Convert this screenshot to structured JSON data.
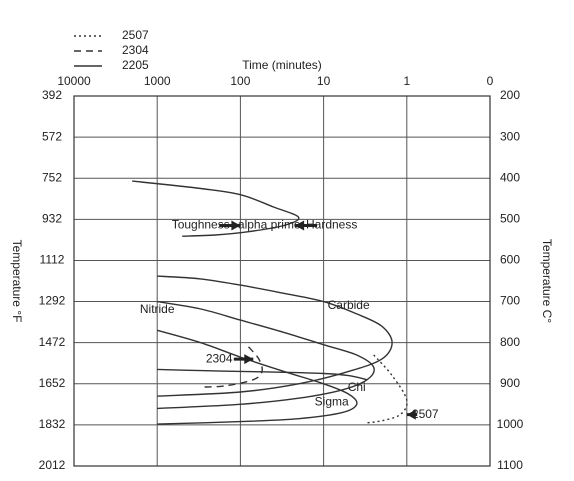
{
  "chart_data": {
    "type": "line",
    "orientation_note": "mirrored",
    "title": "",
    "x_axis": {
      "label": "Time (minutes)",
      "scale": "log",
      "ticks": [
        "0",
        "1",
        "10",
        "100",
        "1000",
        "10000"
      ],
      "tick_values": [
        0.1,
        1,
        10,
        100,
        1000,
        10000
      ]
    },
    "y_left": {
      "label": "Temperature C°",
      "ticks": [
        "200",
        "300",
        "400",
        "500",
        "600",
        "700",
        "800",
        "900",
        "1000",
        "1100"
      ],
      "range": [
        200,
        1100
      ]
    },
    "y_right": {
      "label": "Temperature °F",
      "ticks": [
        "392",
        "572",
        "752",
        "932",
        "1112",
        "1292",
        "1472",
        "1652",
        "1832",
        "2012"
      ]
    },
    "legend": {
      "position": "top-left",
      "entries": [
        {
          "name": "2507",
          "style": "dotted"
        },
        {
          "name": "2304",
          "style": "dashed"
        },
        {
          "name": "2205",
          "style": "solid"
        }
      ]
    },
    "curves": [
      {
        "name": "alpha prime",
        "grade": "2205",
        "style": "solid",
        "points": [
          [
            2000,
            407
          ],
          [
            300,
            425
          ],
          [
            100,
            440
          ],
          [
            40,
            470
          ],
          [
            20,
            495
          ],
          [
            30,
            515
          ],
          [
            80,
            530
          ],
          [
            200,
            538
          ],
          [
            500,
            541
          ]
        ]
      },
      {
        "name": "Carbide",
        "grade": "2205",
        "style": "solid",
        "points": [
          [
            1000,
            638
          ],
          [
            300,
            645
          ],
          [
            100,
            660
          ],
          [
            30,
            680
          ],
          [
            10,
            700
          ],
          [
            4,
            730
          ],
          [
            2,
            760
          ],
          [
            1.5,
            800
          ],
          [
            2,
            840
          ],
          [
            5,
            870
          ],
          [
            20,
            900
          ],
          [
            100,
            920
          ],
          [
            1000,
            930
          ]
        ]
      },
      {
        "name": "Nitride",
        "grade": "2205",
        "style": "solid",
        "points": [
          [
            1000,
            700
          ],
          [
            300,
            718
          ],
          [
            100,
            745
          ],
          [
            30,
            775
          ],
          [
            10,
            805
          ],
          [
            4,
            830
          ],
          [
            2.5,
            860
          ],
          [
            3,
            890
          ],
          [
            6,
            915
          ],
          [
            20,
            935
          ],
          [
            100,
            950
          ],
          [
            1000,
            960
          ]
        ]
      },
      {
        "name": "Sigma",
        "grade": "2205",
        "style": "solid",
        "points": [
          [
            1000,
            770
          ],
          [
            300,
            800
          ],
          [
            100,
            835
          ],
          [
            30,
            870
          ],
          [
            10,
            900
          ],
          [
            5,
            925
          ],
          [
            4,
            950
          ],
          [
            6,
            970
          ],
          [
            20,
            985
          ],
          [
            100,
            992
          ],
          [
            1000,
            998
          ]
        ]
      },
      {
        "name": "Chi",
        "grade": "2205",
        "style": "solid",
        "points": [
          [
            1000,
            865
          ],
          [
            300,
            868
          ],
          [
            100,
            870
          ],
          [
            30,
            872
          ],
          [
            10,
            875
          ],
          [
            5,
            880
          ],
          [
            3,
            890
          ]
        ]
      },
      {
        "name": "2304",
        "grade": "2304",
        "style": "dashed",
        "points": [
          [
            80,
            810
          ],
          [
            60,
            840
          ],
          [
            55,
            870
          ],
          [
            70,
            890
          ],
          [
            150,
            905
          ],
          [
            300,
            908
          ]
        ]
      },
      {
        "name": "2507",
        "grade": "2507",
        "style": "dotted",
        "points": [
          [
            2.5,
            830
          ],
          [
            1.5,
            880
          ],
          [
            1.0,
            940
          ],
          [
            1.2,
            975
          ],
          [
            2.0,
            990
          ],
          [
            3,
            995
          ]
        ]
      }
    ],
    "annotations": [
      {
        "text": "Hardness",
        "x": 8,
        "y": 515
      },
      {
        "text": "alpha prime",
        "x": 45,
        "y": 515
      },
      {
        "text": "Toughness",
        "x": 300,
        "y": 515
      },
      {
        "text": "Carbide",
        "x": 5,
        "y": 710
      },
      {
        "text": "Nitride",
        "x": 1000,
        "y": 720
      },
      {
        "text": "2304",
        "x": 180,
        "y": 840
      },
      {
        "text": "Chi",
        "x": 4,
        "y": 910
      },
      {
        "text": "Sigma",
        "x": 8,
        "y": 945
      },
      {
        "text": "2507",
        "x": 0.6,
        "y": 975
      }
    ]
  }
}
